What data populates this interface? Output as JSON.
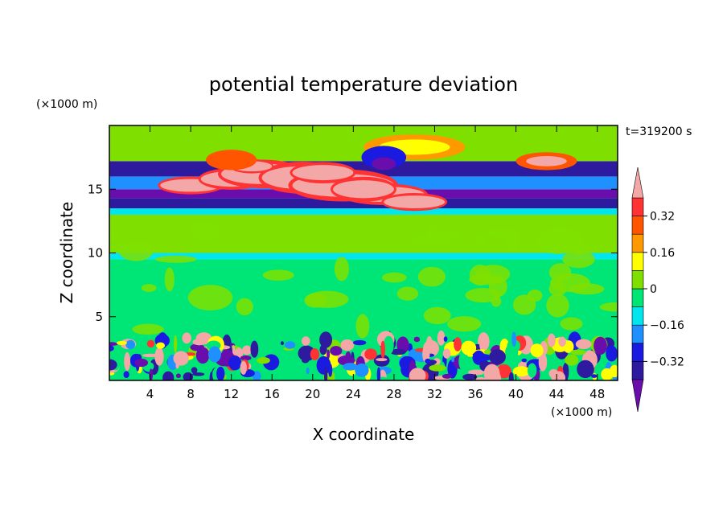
{
  "chart_data": {
    "type": "heatmap",
    "title": "potential temperature deviation",
    "xlabel": "X coordinate",
    "ylabel": "Z coordinate",
    "x_unit": "(×1000 m)",
    "y_unit": "(×1000 m)",
    "time_label": "t=319200 s",
    "xlim": [
      0,
      50
    ],
    "ylim": [
      0,
      20
    ],
    "x_ticks": [
      4,
      8,
      12,
      16,
      20,
      24,
      28,
      32,
      36,
      40,
      44,
      48
    ],
    "x_tick_labels": [
      "4",
      "8",
      "12",
      "16",
      "20",
      "24",
      "28",
      "32",
      "36",
      "40",
      "44",
      "48"
    ],
    "y_ticks": [
      5,
      10,
      15
    ],
    "y_tick_labels": [
      "5",
      "10",
      "15"
    ],
    "colorbar": {
      "levels": [
        -0.4,
        -0.32,
        -0.24,
        -0.16,
        -0.08,
        0,
        0.08,
        0.16,
        0.24,
        0.32,
        0.4
      ],
      "tick_values": [
        0.32,
        0.16,
        0,
        -0.16,
        -0.32
      ],
      "tick_labels": [
        "0.32",
        "0.16",
        "0",
        "−0.16",
        "−0.32"
      ],
      "colors": [
        "#6a0dad",
        "#2e1a9e",
        "#1a1ae0",
        "#1e90ff",
        "#00e5ee",
        "#00e676",
        "#7fe000",
        "#ffff00",
        "#ff9900",
        "#ff5500",
        "#ff3333",
        "#f4a7a7"
      ],
      "under_color": "#6a0dad",
      "over_color": "#f4a7a7"
    }
  }
}
